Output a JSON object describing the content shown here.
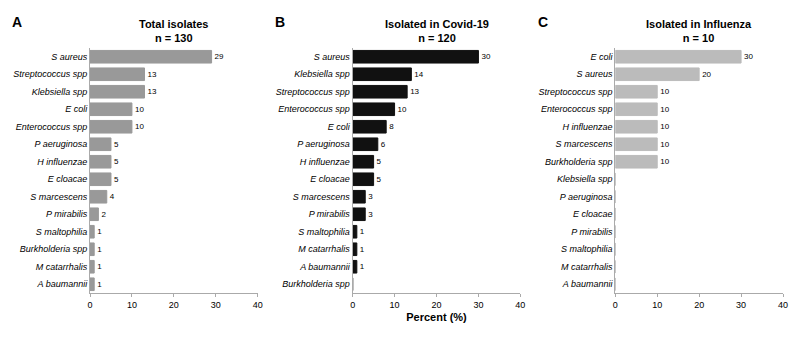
{
  "chart_data": [
    {
      "type": "bar",
      "orientation": "horizontal",
      "title": "Total isolates",
      "subtitle": "n = 130",
      "categories": [
        "S aureus",
        "Streptococcus spp",
        "Klebsiella spp",
        "E coli",
        "Enterococcus spp",
        "P aeruginosa",
        "H influenzae",
        "E cloacae",
        "S marcescens",
        "P mirabilis",
        "S maltophilia",
        "Burkholderia spp",
        "M catarrhalis",
        "A baumannii"
      ],
      "values": [
        29,
        13,
        13,
        10,
        10,
        5,
        5,
        5,
        4,
        2,
        1,
        1,
        1,
        1
      ],
      "color": "#999999",
      "xlim": [
        0,
        40
      ],
      "xticks": [
        0,
        10,
        20,
        30,
        40
      ],
      "grid": false,
      "data_labels": true,
      "annotations": [
        "A"
      ]
    },
    {
      "type": "bar",
      "orientation": "horizontal",
      "title": "Isolated in Covid-19",
      "subtitle": "n = 120",
      "xlabel": "Percent (%)",
      "categories": [
        "S aureus",
        "Klebsiella spp",
        "Streptococcus spp",
        "Enterococcus spp",
        "E coli",
        "P aeruginosa",
        "H influenzae",
        "E cloacae",
        "S marcescens",
        "P mirabilis",
        "S maltophilia",
        "M catarrhalis",
        "A baumannii",
        "Burkholderia spp"
      ],
      "values": [
        30,
        14,
        13,
        10,
        8,
        6,
        5,
        5,
        3,
        3,
        1,
        1,
        1,
        0
      ],
      "value_labels": [
        "30",
        "14",
        "13",
        "10",
        "8",
        "6",
        "5",
        "5",
        "3",
        "3",
        "1",
        "1",
        "1",
        null
      ],
      "color": "#111111",
      "xlim": [
        0,
        40
      ],
      "xticks": [
        0,
        10,
        20,
        30,
        40
      ],
      "grid": false,
      "data_labels": true,
      "annotations": [
        "B"
      ]
    },
    {
      "type": "bar",
      "orientation": "horizontal",
      "title": "Isolated in Influenza",
      "subtitle": "n = 10",
      "categories": [
        "E coli",
        "S aureus",
        "Streptococcus spp",
        "Enterococcus spp",
        "H influenzae",
        "S marcescens",
        "Burkholderia spp",
        "Klebsiella spp",
        "P aeruginosa",
        "E cloacae",
        "P mirabilis",
        "S maltophilia",
        "M catarrhalis",
        "A baumannii"
      ],
      "values": [
        30,
        20,
        10,
        10,
        10,
        10,
        10,
        0,
        0,
        0,
        0,
        0,
        0,
        0
      ],
      "value_labels": [
        "30",
        "20",
        "10",
        "10",
        "10",
        "10",
        "10",
        null,
        null,
        null,
        null,
        null,
        null,
        null
      ],
      "color": "#bbbbbb",
      "xlim": [
        0,
        40
      ],
      "xticks": [
        0,
        10,
        20,
        30,
        40
      ],
      "grid": false,
      "data_labels": true,
      "annotations": [
        "C"
      ]
    }
  ]
}
